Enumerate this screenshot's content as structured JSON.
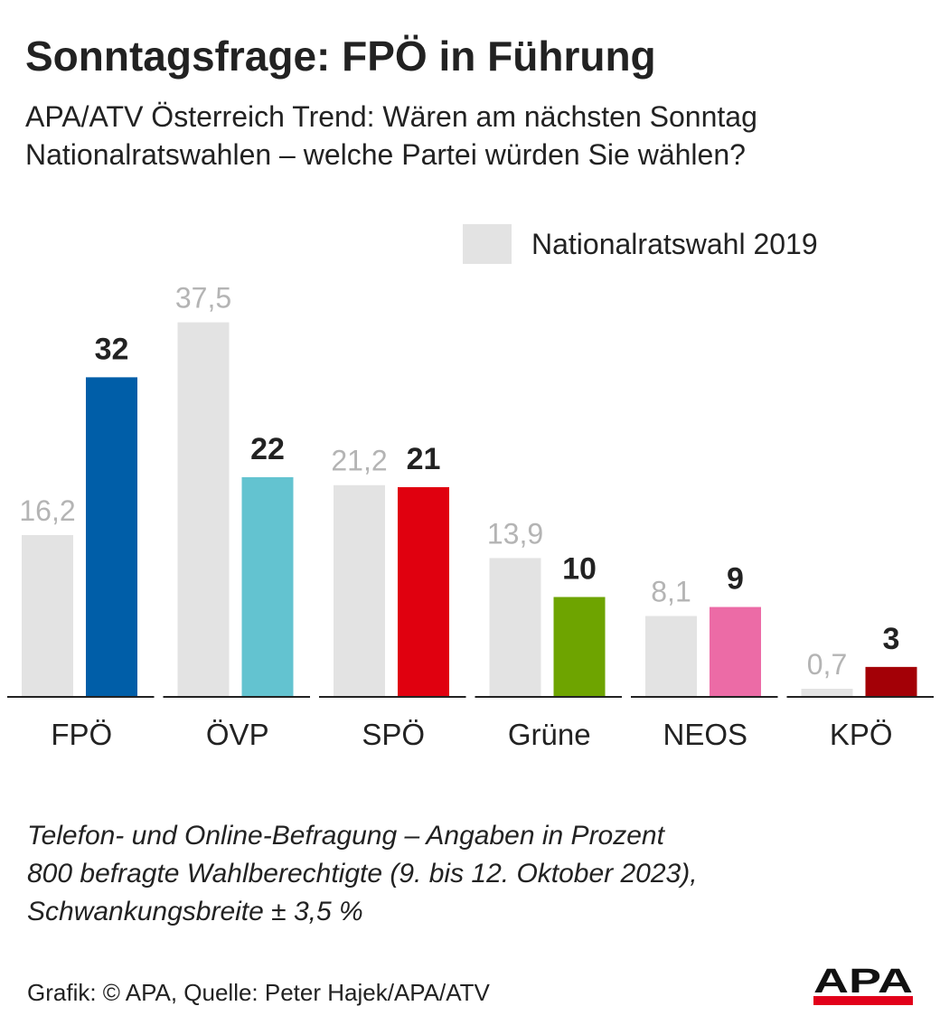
{
  "header": {
    "title": "Sonntagsfrage: FPÖ in Führung",
    "subtitle_lines": [
      "APA/ATV Österreich Trend: Wären am nächsten Sonntag",
      "Nationalratswahlen – welche Partei würden Sie wählen?"
    ]
  },
  "legend": {
    "label": "Nationalratswahl 2019",
    "color": "#e3e3e3"
  },
  "chart_data": {
    "type": "bar",
    "categories": [
      "FPÖ",
      "ÖVP",
      "SPÖ",
      "Grüne",
      "NEOS",
      "KPÖ"
    ],
    "series": [
      {
        "name": "Nationalratswahl 2019",
        "values": [
          16.2,
          37.5,
          21.2,
          13.9,
          8.1,
          0.7
        ],
        "labels": [
          "16,2",
          "37,5",
          "21,2",
          "13,9",
          "8,1",
          "0,7"
        ],
        "color": "#e3e3e3",
        "label_color": "#b4b4b4"
      },
      {
        "values": [
          32,
          22,
          21,
          10,
          9,
          3
        ],
        "labels": [
          "32",
          "22",
          "21",
          "10",
          "9",
          "3"
        ],
        "colors": [
          "#005ea8",
          "#63c3d0",
          "#e0000f",
          "#6ea400",
          "#ec6ba6",
          "#a30006"
        ],
        "label_color": "#222222"
      }
    ],
    "unit": "Prozent",
    "ylim": [
      0,
      40
    ],
    "grid": false,
    "legend_position": "top-right"
  },
  "notes": {
    "lines": [
      "Telefon- und Online-Befragung – Angaben in Prozent",
      "800 befragte Wahlberechtigte (9. bis 12. Oktober 2023),",
      "Schwankungsbreite ± 3,5 %"
    ]
  },
  "footer": {
    "credit": "Grafik: © APA, Quelle: Peter Hajek/APA/ATV",
    "logo_text": "APA",
    "logo_colors": {
      "text": "#111111",
      "bar": "#e2001a"
    }
  }
}
